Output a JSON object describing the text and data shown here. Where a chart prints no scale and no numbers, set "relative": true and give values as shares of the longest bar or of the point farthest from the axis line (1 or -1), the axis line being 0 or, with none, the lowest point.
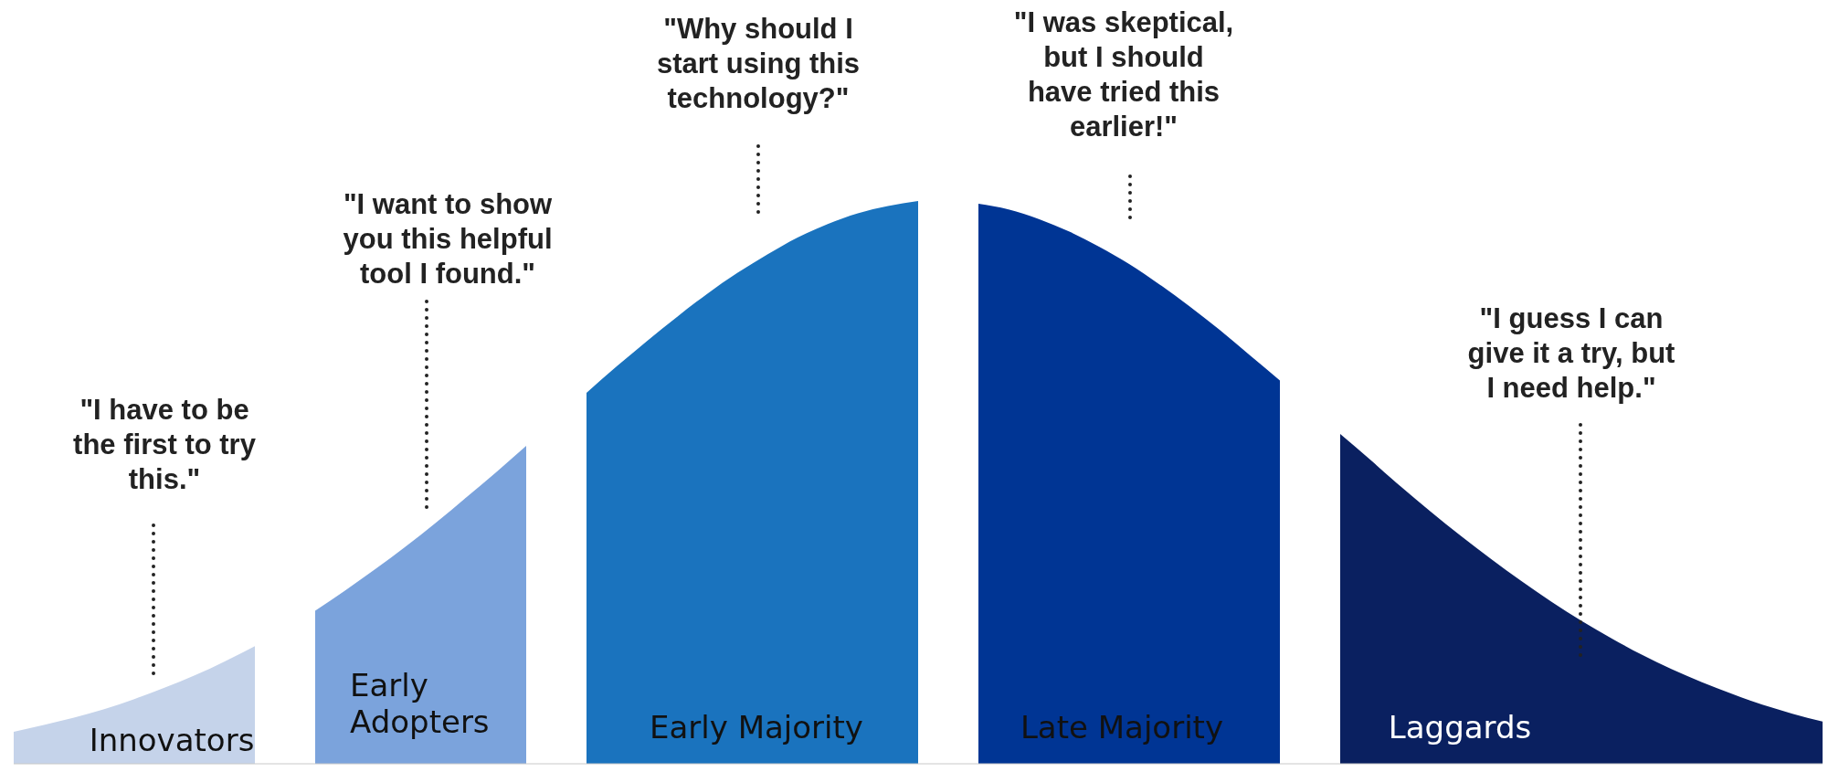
{
  "chart_data": {
    "type": "area",
    "relative": true,
    "legend": false,
    "grid": false,
    "categories": [
      null,
      null,
      null,
      null,
      null,
      null,
      null,
      null,
      null,
      null,
      null,
      null,
      null,
      null,
      null,
      null,
      null,
      null,
      null,
      null,
      null,
      null,
      null,
      null,
      null,
      null,
      null,
      null,
      null,
      null,
      null,
      null,
      null,
      null,
      null,
      null,
      null,
      null,
      null,
      null,
      null,
      null,
      null,
      null,
      null,
      null,
      null,
      null,
      null,
      null,
      null,
      null,
      null,
      null,
      null,
      null,
      null,
      null,
      null,
      null,
      null
    ],
    "series": [
      {
        "name": "Innovators",
        "color": "#c5d3ea",
        "values": [
          0.057,
          0.069,
          0.082,
          0.097,
          0.115,
          0.135,
          0.157,
          0.182,
          0.209,
          null,
          null,
          null,
          null,
          null,
          null,
          null,
          null,
          null,
          null,
          null,
          null,
          null,
          null,
          null,
          null,
          null,
          null,
          null,
          null,
          null,
          null,
          null,
          null,
          null,
          null,
          null,
          null,
          null,
          null,
          null,
          null,
          null,
          null,
          null,
          null,
          null,
          null,
          null,
          null,
          null,
          null,
          null,
          null,
          null,
          null,
          null,
          null,
          null,
          null,
          null,
          null
        ]
      },
      {
        "name": "Early Adopters",
        "color": "#7ba3dc",
        "values": [
          null,
          null,
          null,
          null,
          null,
          null,
          null,
          null,
          null,
          null,
          0.272,
          0.308,
          0.346,
          0.386,
          0.428,
          0.473,
          0.518,
          0.565,
          null,
          null,
          null,
          null,
          null,
          null,
          null,
          null,
          null,
          null,
          null,
          null,
          null,
          null,
          null,
          null,
          null,
          null,
          null,
          null,
          null,
          null,
          null,
          null,
          null,
          null,
          null,
          null,
          null,
          null,
          null,
          null,
          null,
          null,
          null,
          null,
          null,
          null,
          null,
          null,
          null,
          null,
          null
        ]
      },
      {
        "name": "Early Majority",
        "color": "#1a73be",
        "values": [
          null,
          null,
          null,
          null,
          null,
          null,
          null,
          null,
          null,
          null,
          null,
          null,
          null,
          null,
          null,
          null,
          null,
          null,
          null,
          0.659,
          0.706,
          0.751,
          0.794,
          0.835,
          0.872,
          0.905,
          0.935,
          0.959,
          0.978,
          0.991,
          1,
          null,
          null,
          null,
          null,
          null,
          null,
          null,
          null,
          null,
          null,
          null,
          null,
          null,
          null,
          null,
          null,
          null,
          null,
          null,
          null,
          null,
          null,
          null,
          null,
          null,
          null,
          null,
          null,
          null,
          null
        ]
      },
      {
        "name": "Late Majority",
        "color": "#003594",
        "values": [
          null,
          null,
          null,
          null,
          null,
          null,
          null,
          null,
          null,
          null,
          null,
          null,
          null,
          null,
          null,
          null,
          null,
          null,
          null,
          null,
          null,
          null,
          null,
          null,
          null,
          null,
          null,
          null,
          null,
          null,
          null,
          null,
          0.995,
          0.985,
          0.968,
          0.946,
          0.919,
          0.888,
          0.852,
          0.813,
          0.771,
          0.726,
          0.681,
          null,
          null,
          null,
          null,
          null,
          null,
          null,
          null,
          null,
          null,
          null,
          null,
          null,
          null,
          null,
          null,
          null,
          null
        ]
      },
      {
        "name": "Laggards",
        "color": "#0a2060",
        "values": [
          null,
          null,
          null,
          null,
          null,
          null,
          null,
          null,
          null,
          null,
          null,
          null,
          null,
          null,
          null,
          null,
          null,
          null,
          null,
          null,
          null,
          null,
          null,
          null,
          null,
          null,
          null,
          null,
          null,
          null,
          null,
          null,
          null,
          null,
          null,
          null,
          null,
          null,
          null,
          null,
          null,
          null,
          null,
          null,
          0.586,
          0.54,
          0.493,
          0.448,
          0.405,
          0.364,
          0.325,
          0.288,
          0.254,
          0.223,
          0.194,
          0.168,
          0.145,
          0.124,
          0.105,
          0.089,
          0.075
        ]
      }
    ],
    "annotations": [
      "\"I have to be\nthe first to try\nthis.\"",
      "\"I want to show\nyou this helpful\ntool I found.\"",
      "\"Why should I\nstart using this\ntechnology?\"",
      "\"I was skeptical,\nbut I should\nhave tried this\nearlier!\"",
      "\"I guess I can\ngive it a try, but\nI need help.\""
    ]
  }
}
